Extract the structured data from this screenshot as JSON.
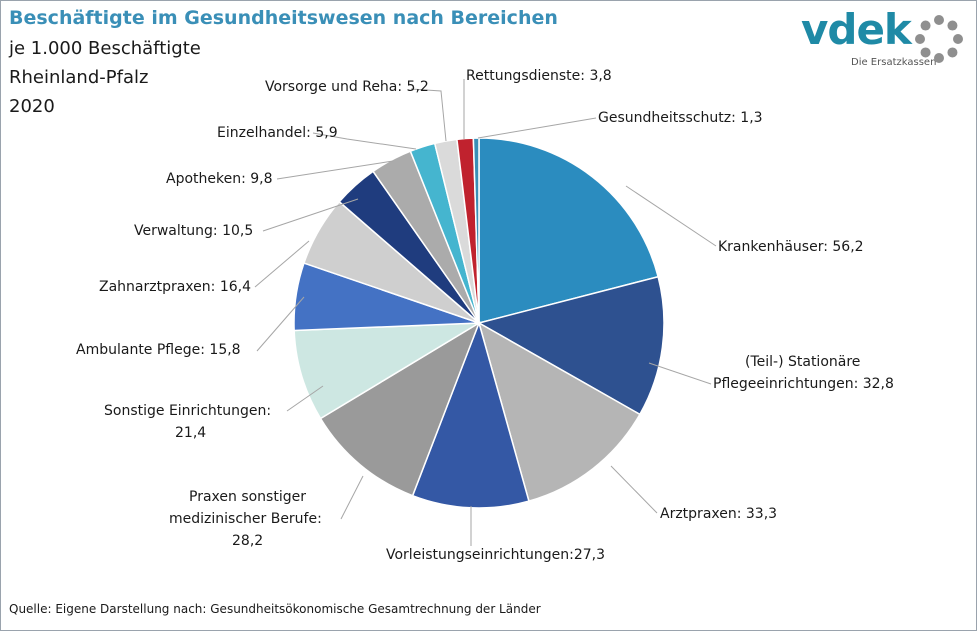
{
  "title": "Beschäftigte im Gesundheitswesen nach Bereichen",
  "subtitle_lines": [
    "je 1.000 Beschäftigte",
    "Rheinland-Pfalz",
    "2020"
  ],
  "source": "Quelle: Eigene Darstellung nach: Gesundheitsökonomische  Gesamtrechnung  der Länder",
  "logo": {
    "word": "vdek",
    "tagline": "Die Ersatzkassen",
    "color": "#1f8aa6",
    "dots_color": "#8f8f8f"
  },
  "labels": {
    "krankenhaeuser": "Krankenhäuser: 56,2",
    "pflege_l1": "(Teil-) Stationäre",
    "pflege_l2": "Pflegeeinrichtungen: 32,8",
    "arztpraxen": "Arztpraxen: 33,3",
    "vorleistung": "Vorleistungseinrichtungen:27,3",
    "praxen_l1": "Praxen sonstiger",
    "praxen_l2": "medizinischer Berufe:",
    "praxen_l3": "28,2",
    "sonstige_l1": "Sonstige Einrichtungen:",
    "sonstige_l2": "21,4",
    "ambulant": "Ambulante Pflege: 15,8",
    "zahnarzt": "Zahnarztpraxen: 16,4",
    "verwaltung": "Verwaltung: 10,5",
    "apotheken": "Apotheken: 9,8",
    "einzelhandel": "Einzelhandel: 5,9",
    "vorsorge": "Vorsorge und Reha: 5,2",
    "rettung": "Rettungsdienste: 3,8",
    "gesundheitsschutz": "Gesundheitsschutz: 1,3"
  },
  "chart_data": {
    "type": "pie",
    "title": "Beschäftigte im Gesundheitswesen nach Bereichen",
    "unit": "je 1.000 Beschäftigte",
    "region": "Rheinland-Pfalz",
    "year": "2020",
    "start_angle_deg": 0,
    "direction": "clockwise",
    "slices": [
      {
        "key": "krankenhaeuser",
        "name": "Krankenhäuser",
        "value": 56.2,
        "color": "#2b8cbf"
      },
      {
        "key": "pflege",
        "name": "(Teil-) Stationäre Pflegeeinrichtungen",
        "value": 32.8,
        "color": "#2e5190"
      },
      {
        "key": "arztpraxen",
        "name": "Arztpraxen",
        "value": 33.3,
        "color": "#b5b5b5"
      },
      {
        "key": "vorleistung",
        "name": "Vorleistungseinrichtungen",
        "value": 27.3,
        "color": "#3458a5"
      },
      {
        "key": "praxen",
        "name": "Praxen sonstiger medizinischer Berufe",
        "value": 28.2,
        "color": "#9a9a9a"
      },
      {
        "key": "sonstige",
        "name": "Sonstige Einrichtungen",
        "value": 21.4,
        "color": "#cde7e2"
      },
      {
        "key": "ambulant",
        "name": "Ambulante Pflege",
        "value": 15.8,
        "color": "#4472c4"
      },
      {
        "key": "zahnarzt",
        "name": "Zahnarztpraxen",
        "value": 16.4,
        "color": "#cfcfcf"
      },
      {
        "key": "verwaltung",
        "name": "Verwaltung",
        "value": 10.5,
        "color": "#1f3c7e"
      },
      {
        "key": "apotheken",
        "name": "Apotheken",
        "value": 9.8,
        "color": "#ababab"
      },
      {
        "key": "einzelhandel",
        "name": "Einzelhandel",
        "value": 5.9,
        "color": "#45b5cf"
      },
      {
        "key": "vorsorge",
        "name": "Vorsorge und Reha",
        "value": 5.2,
        "color": "#dadada"
      },
      {
        "key": "rettung",
        "name": "Rettungsdienste",
        "value": 3.8,
        "color": "#c0222e"
      },
      {
        "key": "gesundheitsschutz",
        "name": "Gesundheitsschutz",
        "value": 1.3,
        "color": "#3a8fb7"
      }
    ]
  }
}
